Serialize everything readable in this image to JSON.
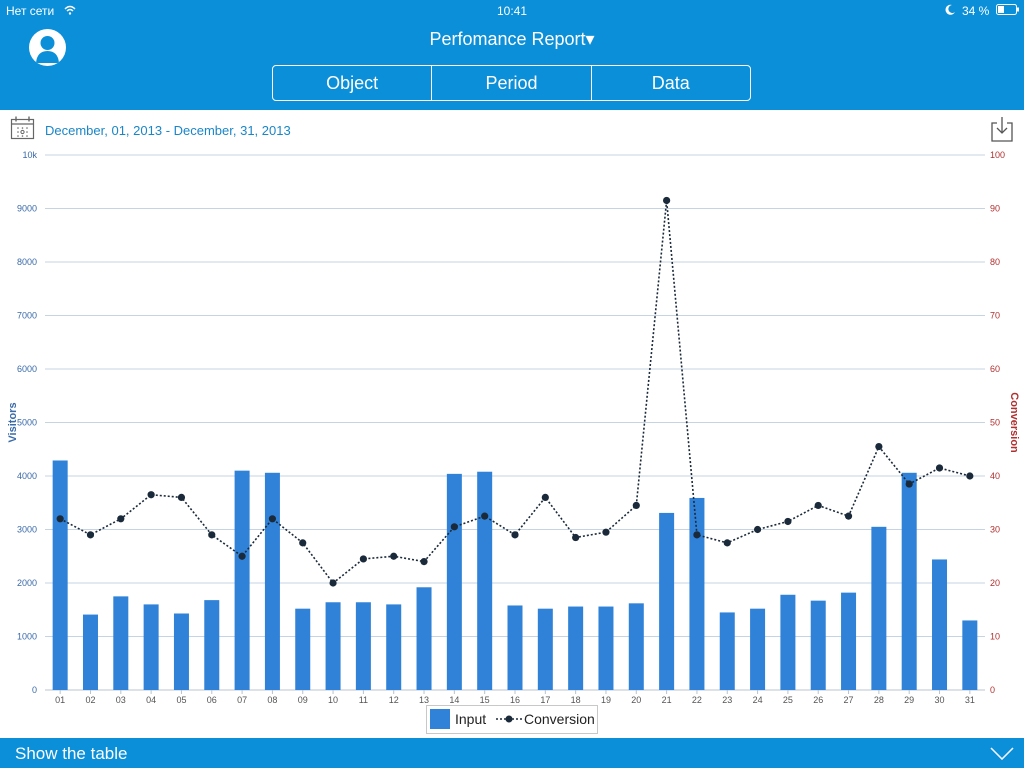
{
  "status_bar": {
    "carrier": "Нет сети",
    "time": "10:41",
    "battery": "34 %"
  },
  "header": {
    "title": "Perfomance Report",
    "title_caret": "▾",
    "segments": [
      "Object",
      "Period",
      "Data"
    ]
  },
  "date_range": "December, 01, 2013 - December, 31, 2013",
  "footer": {
    "label": "Show the table"
  },
  "colors": {
    "header": "#0b8fd9",
    "bar": "#2f82d7",
    "line": "#1b2a3a",
    "left_axis": "#3a6aa8",
    "right_axis": "#b03030"
  },
  "chart_data": {
    "type": "bar+line",
    "categories": [
      "01",
      "02",
      "03",
      "04",
      "05",
      "06",
      "07",
      "08",
      "09",
      "10",
      "11",
      "12",
      "13",
      "14",
      "15",
      "16",
      "17",
      "18",
      "19",
      "20",
      "21",
      "22",
      "23",
      "24",
      "25",
      "26",
      "27",
      "28",
      "29",
      "30",
      "31"
    ],
    "series": [
      {
        "name": "Input",
        "type": "bar",
        "axis": "left",
        "values": [
          4290,
          1410,
          1750,
          1600,
          1430,
          1680,
          4100,
          4060,
          1520,
          1640,
          1640,
          1600,
          1920,
          4040,
          4080,
          1580,
          1520,
          1560,
          1560,
          1620,
          3310,
          3590,
          1450,
          1520,
          1780,
          1670,
          1820,
          3050,
          4060,
          2440,
          1300
        ]
      },
      {
        "name": "Conversion",
        "type": "line",
        "axis": "right",
        "values": [
          32,
          29,
          32,
          36.5,
          36,
          29,
          25,
          32,
          27.5,
          20,
          24.5,
          25,
          24,
          30.5,
          32.5,
          29,
          36,
          28.5,
          29.5,
          34.5,
          91.5,
          29,
          27.5,
          30,
          31.5,
          34.5,
          32.5,
          45.5,
          38.5,
          41.5,
          40
        ]
      }
    ],
    "y_left": {
      "label": "Visitors",
      "ticks": [
        "0",
        "1000",
        "2000",
        "3000",
        "4000",
        "5000",
        "6000",
        "7000",
        "8000",
        "9000",
        "10k"
      ],
      "range": [
        0,
        10000
      ]
    },
    "y_right": {
      "label": "Conversion",
      "ticks": [
        "0",
        "10",
        "20",
        "30",
        "40",
        "50",
        "60",
        "70",
        "80",
        "90",
        "100"
      ],
      "range": [
        0,
        100
      ]
    },
    "grid": true,
    "legend": "bottom-center"
  }
}
